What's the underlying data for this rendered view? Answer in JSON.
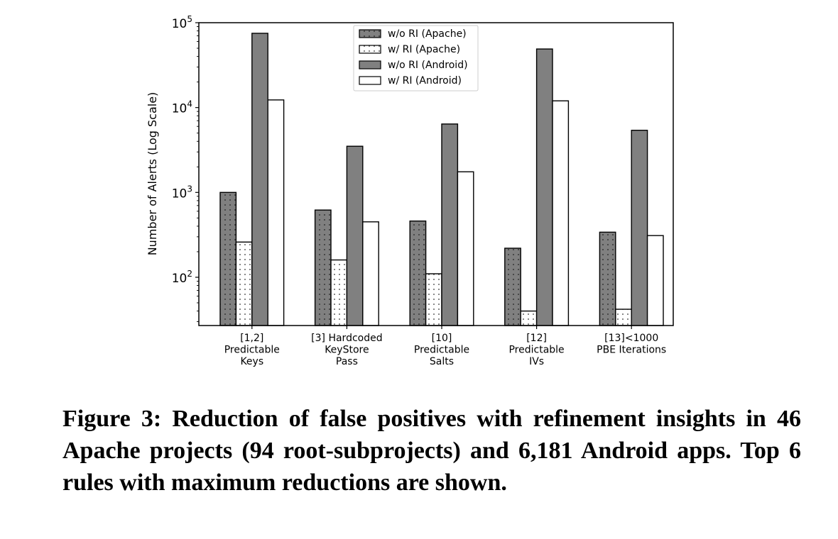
{
  "chart_data": {
    "type": "bar",
    "ylabel": "Number of Alerts (Log Scale)",
    "yscale": "log",
    "ylim": [
      27,
      100000
    ],
    "y_ticks": [
      {
        "value": 100,
        "base": "10",
        "exp": "2"
      },
      {
        "value": 1000,
        "base": "10",
        "exp": "3"
      },
      {
        "value": 10000,
        "base": "10",
        "exp": "4"
      },
      {
        "value": 100000,
        "base": "10",
        "exp": "5"
      }
    ],
    "categories": [
      [
        "[1,2]",
        "Predictable",
        "Keys"
      ],
      [
        "[3] Hardcoded",
        "KeyStore",
        "Pass"
      ],
      [
        "[10]",
        "Predictable",
        "Salts"
      ],
      [
        "[12]",
        "Predictable",
        "IVs"
      ],
      [
        "[13]<1000",
        "PBE Iterations"
      ]
    ],
    "series": [
      {
        "name": "w/o RI (Apache)",
        "fill": "#808080",
        "pattern": "dots-dark",
        "values": [
          1000,
          620,
          460,
          220,
          340
        ]
      },
      {
        "name": "w/ RI (Apache)",
        "fill": "#ffffff",
        "pattern": "dots-light",
        "values": [
          260,
          160,
          110,
          40,
          42
        ]
      },
      {
        "name": "w/o RI (Android)",
        "fill": "#808080",
        "pattern": "none",
        "values": [
          75000,
          3500,
          6400,
          49000,
          5400
        ]
      },
      {
        "name": "w/ RI (Android)",
        "fill": "#ffffff",
        "pattern": "none",
        "values": [
          12300,
          450,
          1750,
          12000,
          310
        ]
      }
    ],
    "legend_position": "top-center",
    "grid": false
  },
  "caption": "Figure 3: Reduction of false positives with refinement insights in 46 Apache projects (94 root-subprojects) and 6,181 Android apps. Top 6 rules with maximum reductions are shown."
}
